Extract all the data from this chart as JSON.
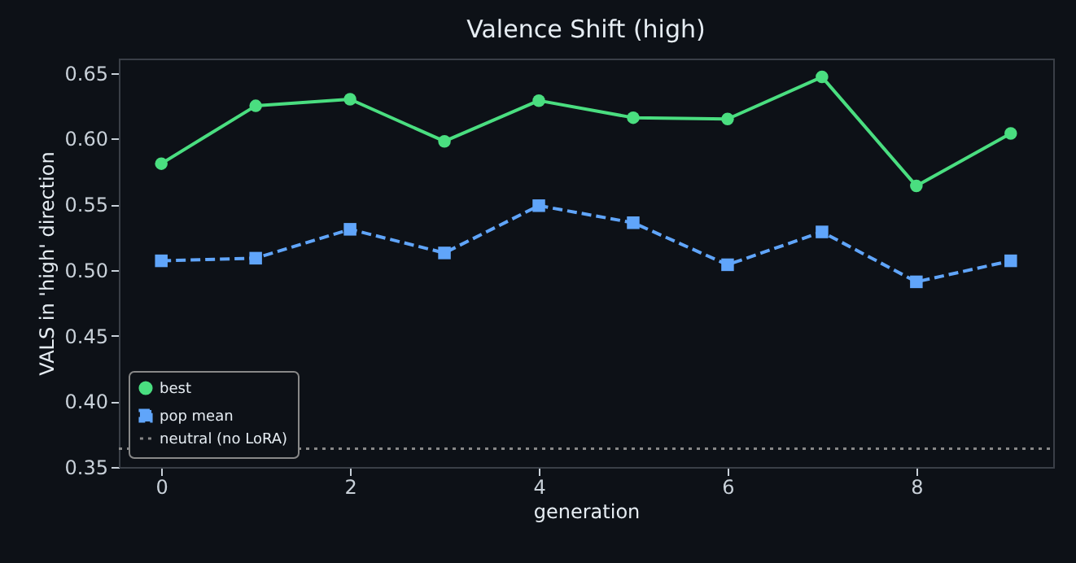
{
  "chart_data": {
    "type": "line",
    "title": "Valence Shift (high)",
    "xlabel": "generation",
    "ylabel": "VALS in 'high' direction",
    "x": [
      0,
      1,
      2,
      3,
      4,
      5,
      6,
      7,
      8,
      9
    ],
    "series": [
      {
        "name": "best",
        "color": "#4ade80",
        "marker": "circle",
        "line_style": "solid",
        "values": [
          0.581,
          0.625,
          0.63,
          0.598,
          0.629,
          0.616,
          0.615,
          0.647,
          0.564,
          0.604
        ]
      },
      {
        "name": "pop mean",
        "color": "#60a5fa",
        "marker": "square",
        "line_style": "dashed",
        "values": [
          0.507,
          0.509,
          0.531,
          0.513,
          0.549,
          0.536,
          0.504,
          0.529,
          0.491,
          0.507
        ]
      }
    ],
    "ref_lines": [
      {
        "axis": "y",
        "value": 0.364,
        "label": "neutral (no LoRA)",
        "color": "#888888",
        "line_style": "dotted"
      }
    ],
    "xlim": [
      -0.45,
      9.45
    ],
    "xticks": [
      0,
      2,
      4,
      6,
      8
    ],
    "ylim": [
      0.35,
      0.661
    ],
    "yticks": [
      {
        "value": 0.35,
        "label": "0.35"
      },
      {
        "value": 0.4,
        "label": "0.40"
      },
      {
        "value": 0.45,
        "label": "0.45"
      },
      {
        "value": 0.5,
        "label": "0.50"
      },
      {
        "value": 0.55,
        "label": "0.55"
      },
      {
        "value": 0.6,
        "label": "0.60"
      },
      {
        "value": 0.65,
        "label": "0.65"
      }
    ],
    "grid": false,
    "legend": "bottom left"
  }
}
